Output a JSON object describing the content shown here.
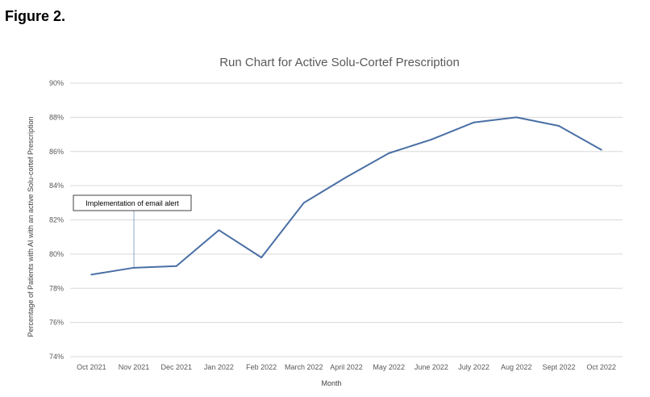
{
  "figure_label": "Figure 2.",
  "chart_data": {
    "type": "line",
    "title": "Run Chart for Active Solu-Cortef Prescription",
    "xlabel": "Month",
    "ylabel": "Percentage of Patients with AI with an active Solu-cortef Prescription",
    "categories": [
      "Oct 2021",
      "Nov 2021",
      "Dec 2021",
      "Jan 2022",
      "Feb 2022",
      "March 2022",
      "April 2022",
      "May 2022",
      "June 2022",
      "July 2022",
      "Aug 2022",
      "Sept 2022",
      "Oct 2022"
    ],
    "series": [
      {
        "values": [
          78.8,
          79.2,
          79.3,
          81.4,
          79.8,
          83.0,
          84.5,
          85.9,
          86.7,
          87.7,
          88.0,
          87.5,
          86.1
        ]
      }
    ],
    "ylim": [
      74,
      90
    ],
    "yticks": [
      74,
      76,
      78,
      80,
      82,
      84,
      86,
      88,
      90
    ],
    "ytick_labels": [
      "74%",
      "76%",
      "78%",
      "80%",
      "82%",
      "84%",
      "86%",
      "88%",
      "90%"
    ],
    "grid": true,
    "line_color": "#4a6fa5",
    "grid_color": "#d9d9d9",
    "annotations": [
      {
        "text": "Implementation of email alert",
        "category": "Nov 2021"
      }
    ]
  }
}
